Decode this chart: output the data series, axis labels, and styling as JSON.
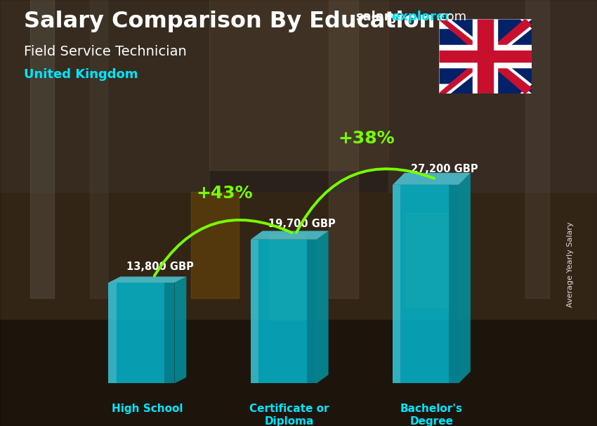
{
  "title_salary": "Salary Comparison By Education",
  "title_job": "Field Service Technician",
  "title_country": "United Kingdom",
  "site_salary": "salary",
  "site_explorer": "explorer",
  "site_com": ".com",
  "ylabel": "Average Yearly Salary",
  "categories": [
    "High School",
    "Certificate or\nDiploma",
    "Bachelor's\nDegree"
  ],
  "values": [
    13800,
    19700,
    27200
  ],
  "value_labels": [
    "13,800 GBP",
    "19,700 GBP",
    "27,200 GBP"
  ],
  "pct_labels": [
    "+43%",
    "+38%"
  ],
  "bar_color_main": "#00bcd4",
  "bar_color_light": "#4dd0e1",
  "bar_color_dark": "#0097a7",
  "bar_alpha": 0.82,
  "title_color": "#ffffff",
  "country_color": "#00e5ff",
  "job_color": "#ffffff",
  "value_label_color": "#ffffff",
  "pct_color": "#76ff03",
  "category_color": "#00e5ff",
  "arrow_color": "#76ff03",
  "bar_width": 0.13,
  "bar_positions": [
    0.22,
    0.5,
    0.78
  ],
  "ylim": [
    0,
    35000
  ],
  "bg_color_top": "#6b4c2a",
  "bg_color_mid": "#5a4030",
  "bg_color_bot": "#3a2a1a"
}
